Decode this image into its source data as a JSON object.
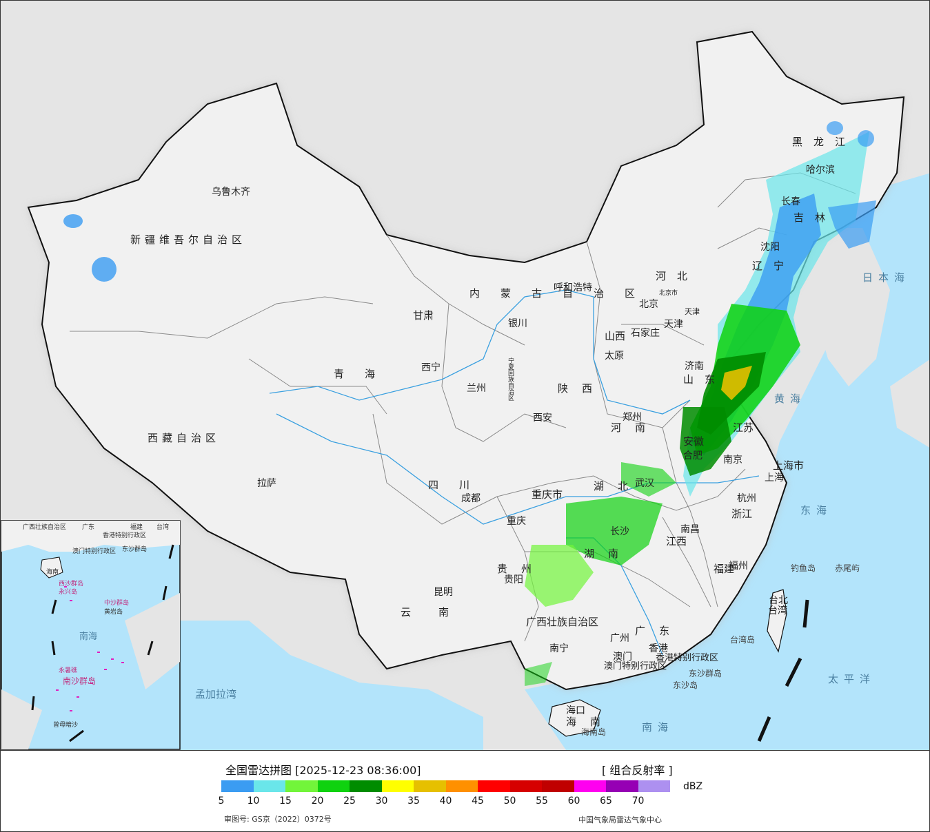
{
  "legend": {
    "title": "全国雷达拼图 [2025-12-23 08:36:00]",
    "product": "[ 组合反射率 ]",
    "unit": "dBZ",
    "ticks": [
      "5",
      "10",
      "15",
      "20",
      "25",
      "30",
      "35",
      "40",
      "45",
      "50",
      "55",
      "60",
      "65",
      "70"
    ],
    "colors": [
      "#3b9cf2",
      "#6ae6ea",
      "#72f53a",
      "#0fd20f",
      "#008c00",
      "#ffff00",
      "#e6c000",
      "#ff9000",
      "#ff0000",
      "#d60000",
      "#c00000",
      "#ff00f0",
      "#9600b4",
      "#ad90f0"
    ],
    "approval_number": "审图号: GS京（2022）0372号",
    "source": "中国气象局雷达气象中心"
  },
  "map": {
    "colors": {
      "sea": "#b3e4fb",
      "land_china": "#f1f1f1",
      "land_other": "#e5e5e5",
      "border": "#111111",
      "river": "#3aa0e0"
    },
    "regions": [
      "新疆维吾尔自治区",
      "西藏自治区",
      "青海",
      "甘肃",
      "内蒙古自治区",
      "黑龙江",
      "吉林",
      "辽宁",
      "河北",
      "山西",
      "山东",
      "河南",
      "江苏",
      "安徽",
      "湖北",
      "四川",
      "重庆市",
      "贵州",
      "云南",
      "湖南",
      "江西",
      "浙江",
      "福建",
      "广东",
      "广西壮族自治区",
      "海南",
      "陕西",
      "宁夏回族自治区",
      "北京市",
      "天津",
      "上海市",
      "台湾",
      "香港特别行政区",
      "澳门特别行政区"
    ],
    "cities": [
      "乌鲁木齐",
      "拉萨",
      "西宁",
      "兰州",
      "银川",
      "呼和浩特",
      "北京",
      "天津",
      "石家庄",
      "太原",
      "济南",
      "郑州",
      "西安",
      "成都",
      "重庆",
      "贵阳",
      "昆明",
      "南宁",
      "广州",
      "香港",
      "澳门",
      "海口",
      "长沙",
      "武汉",
      "南昌",
      "合肥",
      "南京",
      "上海",
      "杭州",
      "福州",
      "台北",
      "沈阳",
      "长春",
      "哈尔滨"
    ],
    "seas": [
      "日本海",
      "黄海",
      "东海",
      "太平洋",
      "南海",
      "孟加拉湾"
    ],
    "islands": [
      "钓鱼岛",
      "赤尾屿",
      "台湾岛",
      "东沙群岛",
      "海南岛",
      "东沙岛"
    ],
    "inset": {
      "labels": [
        "广西壮族自治区",
        "广东",
        "福建",
        "台湾",
        "香港特别行政区",
        "澳门特别行政区",
        "东沙群岛",
        "海南",
        "西沙群岛",
        "永兴岛",
        "中沙群岛",
        "黄岩岛",
        "南海",
        "南沙群岛",
        "永暑礁",
        "曾母暗沙"
      ]
    }
  }
}
